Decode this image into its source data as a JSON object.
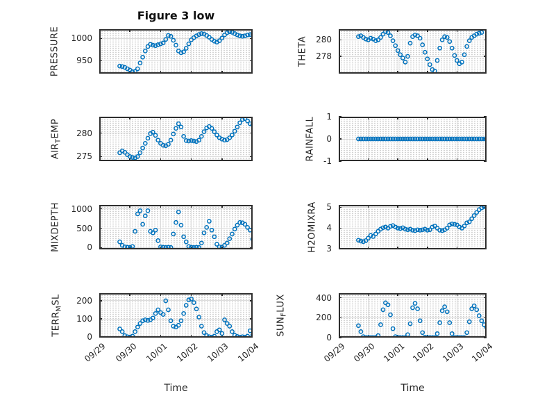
{
  "title": "Figure 3 low",
  "xlabel": "Time",
  "colors": {
    "marker": "#0072BD",
    "axis": "#2e2e2e",
    "major_grid": "#dcdcdc",
    "minor_grid_dots": "#c6c6c6",
    "text": "#262626"
  },
  "x_axis": {
    "tick_labels": [
      "09/29",
      "09/30",
      "10/01",
      "10/02",
      "10/03",
      "10/04"
    ],
    "tick_positions_days": [
      0,
      1,
      2,
      3,
      4,
      5
    ],
    "range_days": [
      0,
      5
    ],
    "label_rotation_deg": -40
  },
  "chart_data": {
    "type": "scatter",
    "marker": "open-circle",
    "grid": "major-solid+minor-dotted",
    "x_unit": "days since 09/29 00:00",
    "x_days": [
      0.667,
      0.75,
      0.833,
      0.917,
      1,
      1.083,
      1.167,
      1.25,
      1.333,
      1.417,
      1.5,
      1.583,
      1.667,
      1.75,
      1.833,
      1.917,
      2,
      2.083,
      2.167,
      2.25,
      2.333,
      2.417,
      2.5,
      2.583,
      2.667,
      2.75,
      2.833,
      2.917,
      3,
      3.083,
      3.167,
      3.25,
      3.333,
      3.417,
      3.5,
      3.583,
      3.667,
      3.75,
      3.833,
      3.917,
      4,
      4.083,
      4.167,
      4.25,
      4.333,
      4.417,
      4.5,
      4.583,
      4.667,
      4.75,
      4.833,
      4.917,
      5
    ],
    "charts": [
      {
        "id": "pressure",
        "ylabel": "PRESSURE",
        "ylabel_parts": [
          {
            "t": "PRESSURE"
          }
        ],
        "ylim": [
          921,
          1021
        ],
        "yticks": [
          950,
          1000
        ],
        "y": [
          938,
          937,
          935,
          932,
          929,
          925,
          926,
          932,
          945,
          958,
          972,
          982,
          987,
          985,
          984,
          986,
          988,
          990,
          998,
          1007,
          1005,
          996,
          985,
          972,
          968,
          970,
          978,
          988,
          997,
          1002,
          1006,
          1009,
          1011,
          1010,
          1007,
          1003,
          998,
          994,
          992,
          995,
          1001,
          1008,
          1013,
          1015,
          1014,
          1011,
          1008,
          1006,
          1005,
          1006,
          1008,
          1009,
          1010
        ]
      },
      {
        "id": "theta",
        "ylabel": "THETA",
        "ylabel_parts": [
          {
            "t": "THETA"
          }
        ],
        "ylim": [
          275.9,
          281.3
        ],
        "yticks": [
          278,
          280
        ],
        "x": [
          0.667,
          0.75,
          0.833,
          0.917,
          1,
          1.083,
          1.167,
          1.25,
          1.333,
          1.417,
          1.5,
          1.583,
          1.667,
          1.75,
          1.833,
          1.917,
          2,
          2.083,
          2.167,
          2.25,
          2.333,
          2.417,
          2.5,
          2.583,
          2.667,
          2.75,
          2.833,
          2.917,
          3,
          3.083,
          3.167,
          3.25,
          3.333,
          3.417,
          3.5,
          3.583,
          3.667,
          3.75,
          3.833,
          3.917,
          4,
          4.083,
          4.167,
          4.25,
          4.333,
          4.417,
          4.5,
          4.583,
          4.667,
          4.75,
          4.833
        ],
        "y": [
          280.4,
          280.5,
          280.3,
          280.1,
          280,
          280.2,
          280.1,
          279.9,
          280,
          280.3,
          280.7,
          281,
          280.9,
          280.5,
          279.9,
          279.3,
          278.7,
          278.2,
          277.8,
          277.3,
          278,
          279.6,
          280.4,
          280.6,
          280.5,
          280.2,
          279.4,
          278.5,
          277.7,
          277,
          276.4,
          276.2,
          277.5,
          279,
          280,
          280.4,
          280.3,
          279.8,
          279,
          278.1,
          277.5,
          277.1,
          277.3,
          278.2,
          279.2,
          279.9,
          280.3,
          280.5,
          280.7,
          280.8,
          280.9
        ]
      },
      {
        "id": "air_temp",
        "ylabel": "AIR_TEMP",
        "ylabel_parts": [
          {
            "t": "AIR"
          },
          {
            "t": "T",
            "sub": true
          },
          {
            "t": "EMP"
          }
        ],
        "ylim": [
          274,
          283.5
        ],
        "yticks": [
          275,
          280
        ],
        "y": [
          275.8,
          276.2,
          275.9,
          275.4,
          275,
          274.8,
          274.7,
          275,
          275.8,
          276.8,
          277.8,
          278.9,
          279.9,
          280.2,
          279.5,
          278.5,
          277.8,
          277.4,
          277.3,
          277.6,
          278.5,
          279.8,
          281,
          282,
          281.3,
          279.3,
          278.4,
          278.3,
          278.4,
          278.3,
          278.2,
          278.5,
          279.3,
          280.3,
          281.1,
          281.4,
          281,
          280.3,
          279.6,
          279,
          278.7,
          278.5,
          278.6,
          279,
          279.6,
          280.4,
          281.3,
          282.2,
          282.9,
          283.1,
          282.6,
          282,
          281.8
        ]
      },
      {
        "id": "rainfall",
        "ylabel": "RAINFALL",
        "ylabel_parts": [
          {
            "t": "RAINFALL"
          }
        ],
        "ylim": [
          -1,
          1
        ],
        "yticks": [
          -1,
          0,
          1
        ],
        "y": [
          0,
          0,
          0,
          0,
          0,
          0,
          0,
          0,
          0,
          0,
          0,
          0,
          0,
          0,
          0,
          0,
          0,
          0,
          0,
          0,
          0,
          0,
          0,
          0,
          0,
          0,
          0,
          0,
          0,
          0,
          0,
          0,
          0,
          0,
          0,
          0,
          0,
          0,
          0,
          0,
          0,
          0,
          0,
          0,
          0,
          0,
          0,
          0,
          0,
          0,
          0,
          0,
          0
        ]
      },
      {
        "id": "mixdepth",
        "ylabel": "MIXDEPTH",
        "ylabel_parts": [
          {
            "t": "MIXDEPTH"
          }
        ],
        "ylim": [
          -45,
          1100
        ],
        "yticks": [
          0,
          500,
          1000
        ],
        "y": [
          150,
          60,
          20,
          10,
          5,
          30,
          420,
          870,
          950,
          600,
          820,
          950,
          420,
          380,
          450,
          180,
          20,
          10,
          5,
          10,
          5,
          350,
          650,
          920,
          580,
          280,
          150,
          30,
          10,
          5,
          10,
          5,
          120,
          380,
          520,
          680,
          450,
          280,
          90,
          20,
          10,
          60,
          120,
          230,
          350,
          480,
          580,
          650,
          640,
          600,
          520,
          450,
          220
        ]
      },
      {
        "id": "h2omixra",
        "ylabel": "H2OMIXRA",
        "ylabel_parts": [
          {
            "t": "H2OMIXRA"
          }
        ],
        "ylim": [
          2.98,
          5.11
        ],
        "yticks": [
          3,
          4,
          5
        ],
        "y": [
          3.42,
          3.38,
          3.35,
          3.4,
          3.52,
          3.65,
          3.6,
          3.72,
          3.85,
          3.95,
          4.02,
          4.05,
          4,
          4.08,
          4.12,
          4.05,
          4,
          3.98,
          4.02,
          3.95,
          3.92,
          3.95,
          3.9,
          3.88,
          3.92,
          3.9,
          3.92,
          3.95,
          3.9,
          3.92,
          4.05,
          4.1,
          4,
          3.9,
          3.88,
          3.92,
          4,
          4.15,
          4.2,
          4.18,
          4.15,
          4.05,
          4,
          4.1,
          4.25,
          4.3,
          4.45,
          4.6,
          4.75,
          4.88,
          4.97,
          5.02,
          5.05
        ]
      },
      {
        "id": "terr_msl",
        "ylabel": "TERR_MSL",
        "ylabel_parts": [
          {
            "t": "TERR"
          },
          {
            "t": "M",
            "sub": true
          },
          {
            "t": "SL"
          }
        ],
        "ylim": [
          -3,
          242
        ],
        "yticks": [
          0,
          100,
          200
        ],
        "y": [
          45,
          30,
          8,
          2,
          0,
          5,
          30,
          55,
          75,
          90,
          95,
          92,
          95,
          105,
          130,
          150,
          135,
          125,
          200,
          150,
          90,
          60,
          55,
          65,
          90,
          130,
          175,
          205,
          210,
          190,
          155,
          110,
          60,
          25,
          8,
          2,
          0,
          5,
          30,
          40,
          20,
          95,
          75,
          60,
          30,
          10,
          3,
          0,
          2,
          0,
          5,
          35,
          10
        ]
      },
      {
        "id": "sun_flux",
        "ylabel": "SUN_FLUX",
        "ylabel_parts": [
          {
            "t": "SUN"
          },
          {
            "t": "F",
            "sub": true
          },
          {
            "t": "LUX"
          }
        ],
        "ylim": [
          0,
          447
        ],
        "yticks": [
          0,
          200,
          400
        ],
        "y": [
          120,
          60,
          10,
          0,
          0,
          0,
          0,
          0,
          20,
          130,
          280,
          350,
          330,
          230,
          90,
          10,
          0,
          0,
          0,
          0,
          30,
          140,
          300,
          345,
          290,
          170,
          50,
          5,
          0,
          0,
          0,
          0,
          40,
          150,
          270,
          310,
          260,
          150,
          40,
          0,
          0,
          0,
          0,
          0,
          50,
          160,
          290,
          320,
          280,
          220,
          170,
          130,
          105
        ]
      }
    ]
  }
}
